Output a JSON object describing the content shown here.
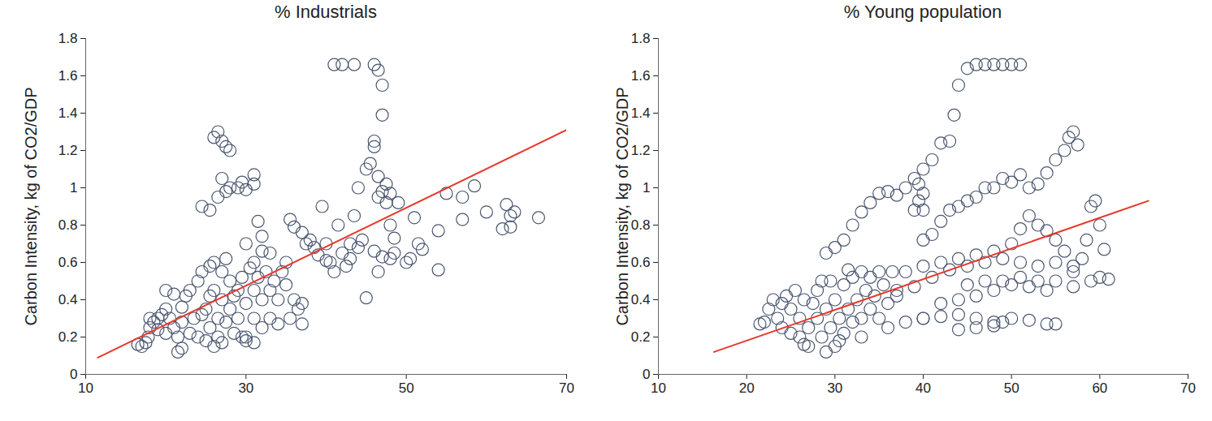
{
  "chart_data": [
    {
      "type": "scatter",
      "title": "% Industrials",
      "y_label": "Carbon Intensity, kg of CO2/GDP",
      "xlim": [
        10,
        70
      ],
      "xticks": [
        10,
        30,
        50,
        70
      ],
      "ylim": [
        0,
        1.8
      ],
      "yticks": [
        0,
        0.2,
        0.4,
        0.6,
        0.8,
        1,
        1.2,
        1.4,
        1.6,
        1.8
      ],
      "series": [
        {
          "type": "scatter",
          "color": "#4a5670",
          "marker": "hollow",
          "x": [
            16.5,
            17,
            17.5,
            17.8,
            18,
            18.5,
            19,
            19.5,
            20,
            20.5,
            21,
            21.5,
            21.5,
            22,
            22.5,
            23,
            23.5,
            24,
            24,
            24.5,
            25,
            25,
            25.5,
            25.5,
            26,
            26,
            26.5,
            26.5,
            27,
            27,
            27.5,
            27.5,
            28,
            28,
            28.5,
            29,
            29,
            29.5,
            30,
            30,
            30.5,
            31,
            31,
            31.5,
            32,
            32,
            32.5,
            33,
            33,
            33.5,
            34,
            34,
            34.5,
            35,
            35,
            35.5,
            36,
            36.5,
            37,
            37,
            18,
            19,
            20,
            22,
            23,
            24.5,
            25.5,
            26,
            27,
            28.5,
            29.5,
            20,
            21,
            22,
            24.5,
            25.5,
            26,
            26.5,
            26.5,
            27,
            27,
            27.5,
            27.5,
            28,
            28,
            29,
            29.5,
            30,
            31,
            31,
            31.5,
            32,
            32,
            31,
            41,
            42,
            43.5,
            46,
            46.5,
            47,
            47,
            35.5,
            36,
            37,
            38,
            39.5,
            40,
            40.5,
            41,
            41.5,
            42,
            42.5,
            43,
            43.5,
            44,
            44.5,
            45,
            45.5,
            46,
            46,
            46.5,
            46.5,
            47,
            47.5,
            47.5,
            48,
            48,
            48.5,
            48,
            47,
            46,
            45,
            46.5,
            49,
            48.5,
            44,
            43,
            40,
            39,
            37.5,
            38.5,
            50,
            50.5,
            51,
            51.5,
            52,
            54,
            54,
            55,
            57,
            57,
            58.5,
            60,
            62,
            62.5,
            63,
            63,
            63.5,
            66.5,
            30,
            33,
            30,
            31
          ],
          "values": [
            0.16,
            0.15,
            0.17,
            0.2,
            0.25,
            0.28,
            0.3,
            0.32,
            0.35,
            0.3,
            0.25,
            0.2,
            0.12,
            0.14,
            0.42,
            0.45,
            0.3,
            0.5,
            0.2,
            0.55,
            0.35,
            0.18,
            0.58,
            0.25,
            0.45,
            0.6,
            0.3,
            0.2,
            0.55,
            0.4,
            0.62,
            0.28,
            0.5,
            0.35,
            0.22,
            0.45,
            0.3,
            0.2,
            0.18,
            0.38,
            0.57,
            0.45,
            0.3,
            0.52,
            0.4,
            0.25,
            0.55,
            0.45,
            0.3,
            0.5,
            0.4,
            0.27,
            0.55,
            0.6,
            0.48,
            0.3,
            0.4,
            0.35,
            0.27,
            0.38,
            0.3,
            0.24,
            0.22,
            0.28,
            0.22,
            0.32,
            0.42,
            0.15,
            0.17,
            0.42,
            0.52,
            0.45,
            0.43,
            0.36,
            0.9,
            0.88,
            1.27,
            1.3,
            0.95,
            1.25,
            1.05,
            1.22,
            0.98,
            1.2,
            1.0,
            1.0,
            1.03,
            0.99,
            1.02,
            1.07,
            0.82,
            0.74,
            0.66,
            0.6,
            1.66,
            1.66,
            1.66,
            1.66,
            1.63,
            1.55,
            1.39,
            0.83,
            0.79,
            0.76,
            0.72,
            0.9,
            0.7,
            0.6,
            0.55,
            0.8,
            0.65,
            0.58,
            0.7,
            0.85,
            1.0,
            0.72,
            1.1,
            1.13,
            1.22,
            1.25,
            1.06,
            0.95,
            0.98,
            1.02,
            0.92,
            0.97,
            0.8,
            0.65,
            0.62,
            0.63,
            0.66,
            0.41,
            0.55,
            0.92,
            0.73,
            0.68,
            0.62,
            0.61,
            0.64,
            0.7,
            0.68,
            0.6,
            0.62,
            0.84,
            0.7,
            0.67,
            0.56,
            0.77,
            0.97,
            0.83,
            0.95,
            1.01,
            0.87,
            0.78,
            0.91,
            0.79,
            0.85,
            0.87,
            0.84,
            0.7,
            0.65,
            0.2,
            0.17
          ]
        },
        {
          "type": "line",
          "color": "#e8372a",
          "line_style": "solid",
          "x": [
            11.5,
            70
          ],
          "values": [
            0.09,
            1.31
          ]
        }
      ]
    },
    {
      "type": "scatter",
      "title": "% Young population",
      "y_label": "Carbon Intensity, kg of CO2/GDP",
      "xlim": [
        10,
        70
      ],
      "xticks": [
        10,
        20,
        30,
        40,
        50,
        60,
        70
      ],
      "ylim": [
        0,
        1.8
      ],
      "yticks": [
        0,
        0.2,
        0.4,
        0.6,
        0.8,
        1,
        1.2,
        1.4,
        1.6,
        1.8
      ],
      "series": [
        {
          "type": "scatter",
          "color": "#4a5670",
          "marker": "hollow",
          "x": [
            21.5,
            22,
            22.5,
            23,
            23.5,
            24,
            24.5,
            25,
            25.5,
            26,
            26,
            26.5,
            27,
            27,
            27.5,
            28,
            28,
            28.5,
            29,
            29,
            29.5,
            29.5,
            30,
            30,
            30.5,
            31,
            31,
            31.5,
            32,
            32,
            32.5,
            33,
            33,
            33.5,
            34,
            34,
            34.5,
            35,
            35,
            35.5,
            36,
            36.5,
            37,
            25,
            26.5,
            28.5,
            30.5,
            31.5,
            33,
            24,
            29,
            30,
            31,
            32,
            33,
            34,
            35,
            36,
            37,
            38,
            39,
            40,
            41,
            42,
            43,
            43.5,
            44,
            45,
            46,
            47,
            48,
            49,
            50,
            51,
            39,
            39.5,
            40,
            40,
            39.5,
            40,
            41,
            42,
            43,
            44,
            45,
            46,
            47,
            48,
            49,
            50,
            51,
            52,
            53,
            54,
            55,
            56,
            56.5,
            57,
            57.5,
            38,
            40,
            42,
            44,
            46,
            48,
            50,
            51,
            52,
            53,
            54,
            55,
            56,
            57,
            58,
            58.5,
            59,
            59.5,
            60,
            60.5,
            45,
            47,
            49,
            51,
            53,
            55,
            57,
            59,
            60,
            61,
            36,
            38,
            40,
            42,
            44,
            46,
            48,
            50,
            52,
            54,
            40,
            42,
            44,
            46,
            48,
            50,
            52,
            54,
            55,
            44,
            46,
            48,
            49,
            37,
            39,
            41,
            43,
            45,
            47,
            49,
            51,
            53,
            55,
            57
          ],
          "values": [
            0.27,
            0.28,
            0.35,
            0.4,
            0.3,
            0.25,
            0.42,
            0.35,
            0.45,
            0.2,
            0.3,
            0.4,
            0.15,
            0.25,
            0.38,
            0.45,
            0.3,
            0.2,
            0.12,
            0.35,
            0.5,
            0.25,
            0.15,
            0.4,
            0.3,
            0.48,
            0.22,
            0.35,
            0.52,
            0.28,
            0.4,
            0.55,
            0.3,
            0.45,
            0.35,
            0.52,
            0.42,
            0.55,
            0.3,
            0.48,
            0.38,
            0.55,
            0.45,
            0.22,
            0.16,
            0.5,
            0.18,
            0.56,
            0.2,
            0.38,
            0.65,
            0.68,
            0.72,
            0.8,
            0.87,
            0.92,
            0.97,
            0.98,
            0.96,
            1.0,
            1.05,
            1.1,
            1.15,
            1.24,
            1.25,
            1.39,
            1.55,
            1.64,
            1.66,
            1.66,
            1.66,
            1.66,
            1.66,
            1.66,
            0.88,
            0.93,
            0.97,
            0.88,
            1.02,
            0.72,
            0.75,
            0.82,
            0.88,
            0.9,
            0.93,
            0.95,
            1.0,
            1.0,
            1.05,
            1.03,
            1.07,
            1.0,
            1.02,
            1.08,
            1.15,
            1.2,
            1.27,
            1.3,
            1.23,
            0.55,
            0.58,
            0.6,
            0.62,
            0.64,
            0.66,
            0.7,
            0.78,
            0.85,
            0.8,
            0.77,
            0.72,
            0.66,
            0.58,
            0.62,
            0.72,
            0.9,
            0.93,
            0.8,
            0.67,
            0.48,
            0.5,
            0.5,
            0.52,
            0.5,
            0.5,
            0.47,
            0.5,
            0.52,
            0.51,
            0.25,
            0.28,
            0.3,
            0.38,
            0.4,
            0.42,
            0.45,
            0.48,
            0.47,
            0.45,
            0.3,
            0.31,
            0.32,
            0.3,
            0.28,
            0.3,
            0.29,
            0.27,
            0.27,
            0.24,
            0.25,
            0.26,
            0.28,
            0.42,
            0.47,
            0.52,
            0.56,
            0.58,
            0.6,
            0.62,
            0.6,
            0.58,
            0.6,
            0.55
          ]
        },
        {
          "type": "line",
          "color": "#e8372a",
          "line_style": "solid",
          "x": [
            16.3,
            65.5
          ],
          "values": [
            0.12,
            0.93
          ]
        }
      ]
    }
  ]
}
